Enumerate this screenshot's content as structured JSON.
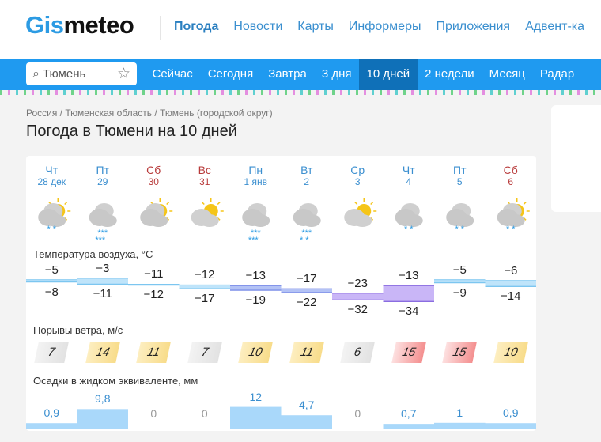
{
  "header": {
    "logo": "Gismeteo",
    "logo_a": "Gis",
    "logo_b": "meteo",
    "nav": [
      "Погода",
      "Новости",
      "Карты",
      "Информеры",
      "Приложения",
      "Адвент-ка"
    ]
  },
  "search": {
    "value": "Тюмень",
    "icon": "search-icon",
    "fav_icon": "star-icon"
  },
  "subnav": [
    "Сейчас",
    "Сегодня",
    "Завтра",
    "3 дня",
    "10 дней",
    "2 недели",
    "Месяц",
    "Радар"
  ],
  "subnav_active": 4,
  "breadcrumb": "Россия / Тюменская область / Тюмень (городской округ)",
  "title": "Погода в Тюмени на 10 дней",
  "days": [
    {
      "dow": "Чт",
      "date": "28 дек",
      "weekend": false,
      "sky": "partly-cloudy",
      "snow": 2,
      "tmax": "−5",
      "tmin": "−8",
      "max": -5,
      "min": -8,
      "wind": "7",
      "wind_level": "low",
      "precip": "0,9",
      "p": 0.9
    },
    {
      "dow": "Пт",
      "date": "29",
      "weekend": false,
      "sky": "cloudy",
      "snow": 6,
      "tmax": "−3",
      "tmin": "−11",
      "max": -3,
      "min": -11,
      "wind": "14",
      "wind_level": "mid",
      "precip": "9,8",
      "p": 9.8
    },
    {
      "dow": "Сб",
      "date": "30",
      "weekend": true,
      "sky": "partly-cloudy",
      "snow": 0,
      "tmax": "−11",
      "tmin": "−12",
      "max": -11,
      "min": -12,
      "wind": "11",
      "wind_level": "mid",
      "precip": "0",
      "p": 0
    },
    {
      "dow": "Вс",
      "date": "31",
      "weekend": true,
      "sky": "mostly-sunny",
      "snow": 0,
      "tmax": "−12",
      "tmin": "−17",
      "max": -12,
      "min": -17,
      "wind": "7",
      "wind_level": "low",
      "precip": "0",
      "p": 0
    },
    {
      "dow": "Пн",
      "date": "1 янв",
      "weekend": false,
      "sky": "cloudy",
      "snow": 6,
      "tmax": "−13",
      "tmin": "−19",
      "max": -13,
      "min": -19,
      "wind": "10",
      "wind_level": "mid",
      "precip": "12",
      "p": 12
    },
    {
      "dow": "Вт",
      "date": "2",
      "weekend": false,
      "sky": "cloudy",
      "snow": 4,
      "tmax": "−17",
      "tmin": "−22",
      "max": -17,
      "min": -22,
      "wind": "11",
      "wind_level": "mid",
      "precip": "4,7",
      "p": 4.7
    },
    {
      "dow": "Ср",
      "date": "3",
      "weekend": false,
      "sky": "mostly-sunny",
      "snow": 0,
      "tmax": "−23",
      "tmin": "−32",
      "max": -23,
      "min": -32,
      "wind": "6",
      "wind_level": "low",
      "precip": "0",
      "p": 0
    },
    {
      "dow": "Чт",
      "date": "4",
      "weekend": false,
      "sky": "cloudy",
      "snow": 2,
      "tmax": "−13",
      "tmin": "−34",
      "max": -13,
      "min": -34,
      "wind": "15",
      "wind_level": "high",
      "precip": "0,7",
      "p": 0.7
    },
    {
      "dow": "Пт",
      "date": "5",
      "weekend": false,
      "sky": "cloudy",
      "snow": 2,
      "tmax": "−5",
      "tmin": "−9",
      "max": -5,
      "min": -9,
      "wind": "15",
      "wind_level": "high",
      "precip": "1",
      "p": 1
    },
    {
      "dow": "Сб",
      "date": "6",
      "weekend": true,
      "sky": "partly-cloudy",
      "snow": 2,
      "tmax": "−6",
      "tmin": "−14",
      "max": -6,
      "min": -14,
      "wind": "10",
      "wind_level": "mid",
      "precip": "0,9",
      "p": 0.9
    }
  ],
  "sections": {
    "temp": "Температура воздуха, °C",
    "wind": "Порывы ветра, м/с",
    "precip": "Осадки в жидком эквиваленте, мм"
  },
  "colors": {
    "accent": "#1f9af0",
    "wind_low": "#e6e6e6",
    "wind_mid": "#fbe3a0",
    "wind_high": "#f59a9a",
    "precip": "#a9d8fa"
  }
}
